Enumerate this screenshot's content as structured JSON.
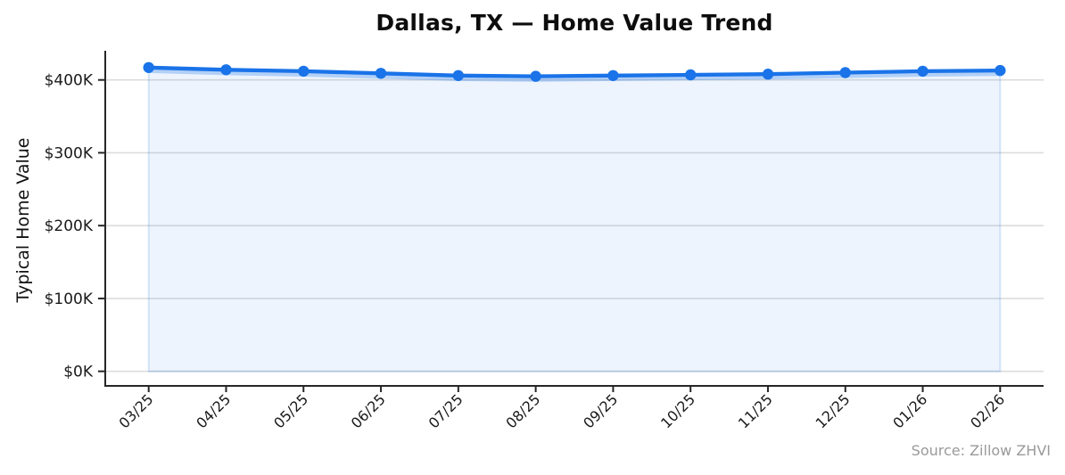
{
  "colors": {
    "line": "#1a73e8",
    "area_fill_tint": "#eaf1fc",
    "grid": "#dcdcdc",
    "axis": "#262626",
    "tick_text": "#1a1a1a",
    "muted_text": "#9a9a9a",
    "background": "#ffffff"
  },
  "chart_data": {
    "type": "line",
    "title": "Dallas, TX — Home Value Trend",
    "xlabel": "",
    "ylabel": "Typical Home Value",
    "x": [
      "03/25",
      "04/25",
      "05/25",
      "06/25",
      "07/25",
      "08/25",
      "09/25",
      "10/25",
      "11/25",
      "12/25",
      "01/26",
      "02/26"
    ],
    "series": [
      {
        "name": "Typical Home Value",
        "values": [
          417000,
          414000,
          412000,
          409000,
          406000,
          405000,
          406000,
          407000,
          408000,
          410000,
          412000,
          413000
        ]
      }
    ],
    "y_ticks": [
      {
        "value": 0,
        "label": "$0K"
      },
      {
        "value": 100000,
        "label": "$100K"
      },
      {
        "value": 200000,
        "label": "$200K"
      },
      {
        "value": 300000,
        "label": "$300K"
      },
      {
        "value": 400000,
        "label": "$400K"
      }
    ],
    "ylim": [
      -20000,
      440000
    ],
    "grid": "horizontal-only",
    "legend_position": "none",
    "markers": "circle",
    "area_fill": true,
    "x_tick_rotation": 45,
    "source": "Source: Zillow ZHVI"
  }
}
